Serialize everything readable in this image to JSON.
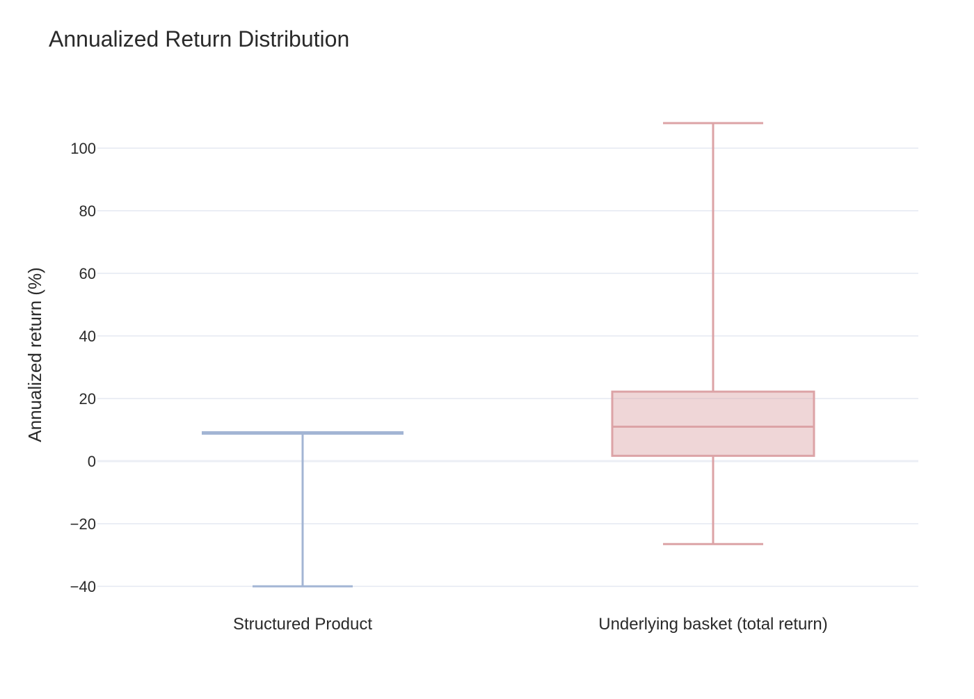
{
  "chart_data": {
    "type": "box",
    "title": "Annualized Return Distribution",
    "xlabel": "",
    "ylabel": "Annualized return (%)",
    "ylim": [
      -45,
      118
    ],
    "yticks": [
      -40,
      -20,
      0,
      20,
      40,
      60,
      80,
      100
    ],
    "grid": true,
    "legend": "none",
    "categories": [
      "Structured Product",
      "Underlying basket (total return)"
    ],
    "series": [
      {
        "category": "Structured Product",
        "min": -40,
        "q1": 9,
        "median": 9,
        "q3": 9,
        "max": 9,
        "color": "#a3b5d4",
        "fill": "rgba(163,181,212,0.35)"
      },
      {
        "category": "Underlying basket (total return)",
        "min": -26.5,
        "q1": 1.7,
        "median": 11,
        "q3": 22.2,
        "max": 108,
        "color": "#dca3a6",
        "fill": "rgba(220,163,166,0.45)"
      }
    ],
    "colors": {
      "grid": "#ebeef5",
      "text": "#2a2a2a"
    }
  }
}
